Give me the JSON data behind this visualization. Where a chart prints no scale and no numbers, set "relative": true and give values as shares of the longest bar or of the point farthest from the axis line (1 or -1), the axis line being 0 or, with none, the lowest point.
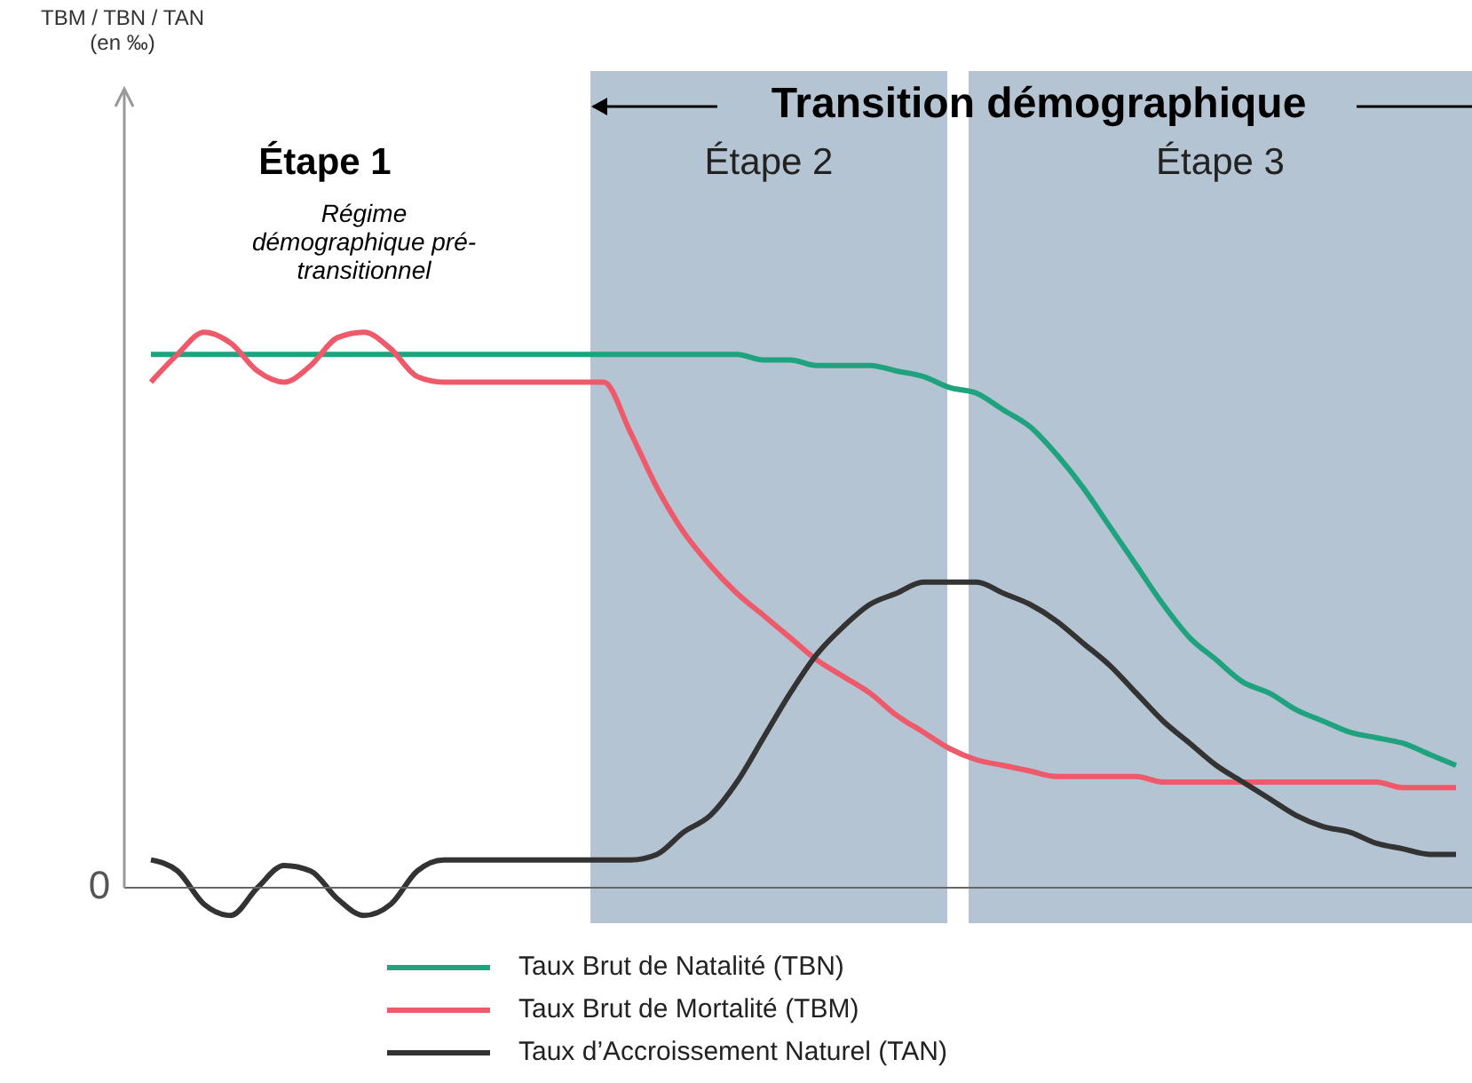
{
  "chart_data": {
    "type": "line",
    "relative": true,
    "legend": "bottom",
    "categories": [
      null,
      null,
      null,
      null,
      null,
      null,
      null,
      null,
      null,
      null,
      null,
      null,
      null,
      null,
      null,
      null,
      null,
      null,
      null,
      null,
      null,
      null,
      null,
      null,
      null,
      null,
      null,
      null,
      null,
      null,
      null,
      null,
      null,
      null,
      null,
      null,
      null,
      null,
      null,
      null,
      null,
      null,
      null,
      null,
      null,
      null,
      null,
      null,
      null,
      null
    ],
    "series": [
      {
        "name": "Taux Brut de Natalité (TBN)",
        "color": "#1fa37f",
        "values": [
          0.96,
          0.96,
          0.96,
          0.96,
          0.96,
          0.96,
          0.96,
          0.96,
          0.96,
          0.96,
          0.96,
          0.96,
          0.96,
          0.96,
          0.96,
          0.96,
          0.96,
          0.96,
          0.96,
          0.96,
          0.96,
          0.96,
          0.96,
          0.95,
          0.95,
          0.94,
          0.94,
          0.94,
          0.93,
          0.92,
          0.9,
          0.89,
          0.86,
          0.83,
          0.78,
          0.72,
          0.65,
          0.58,
          0.51,
          0.45,
          0.41,
          0.37,
          0.35,
          0.32,
          0.3,
          0.28,
          0.27,
          0.26,
          0.24,
          0.22
        ]
      },
      {
        "name": "Taux Brut de Mortalité (TBM)",
        "color": "#ee5a6a",
        "values": [
          0.91,
          0.96,
          1,
          0.98,
          0.93,
          0.91,
          0.94,
          0.99,
          1,
          0.97,
          0.92,
          0.91,
          0.91,
          0.91,
          0.91,
          0.91,
          0.91,
          0.91,
          0.82,
          0.72,
          0.64,
          0.58,
          0.53,
          0.49,
          0.45,
          0.41,
          0.38,
          0.35,
          0.31,
          0.28,
          0.25,
          0.23,
          0.22,
          0.21,
          0.2,
          0.2,
          0.2,
          0.2,
          0.19,
          0.19,
          0.19,
          0.19,
          0.19,
          0.19,
          0.19,
          0.19,
          0.19,
          0.18,
          0.18,
          0.18
        ]
      },
      {
        "name": "Taux d’Accroissement Naturel (TAN)",
        "color": "#333333",
        "values": [
          0.05,
          0.03,
          -0.03,
          -0.05,
          0,
          0.04,
          0.03,
          -0.02,
          -0.05,
          -0.03,
          0.03,
          0.05,
          0.05,
          0.05,
          0.05,
          0.05,
          0.05,
          0.05,
          0.05,
          0.06,
          0.1,
          0.13,
          0.19,
          0.27,
          0.35,
          0.42,
          0.47,
          0.51,
          0.53,
          0.55,
          0.55,
          0.55,
          0.53,
          0.51,
          0.48,
          0.44,
          0.4,
          0.35,
          0.3,
          0.26,
          0.22,
          0.19,
          0.16,
          0.13,
          0.11,
          0.1,
          0.08,
          0.07,
          0.06,
          0.06
        ]
      }
    ],
    "annotations": [
      "Étape 1",
      "Régime démographique pré-transitionnel",
      "Transition démographique",
      "0",
      "Étape 2",
      "Étape 3",
      "TBM / TBN / TAN (en ‰)"
    ]
  }
}
